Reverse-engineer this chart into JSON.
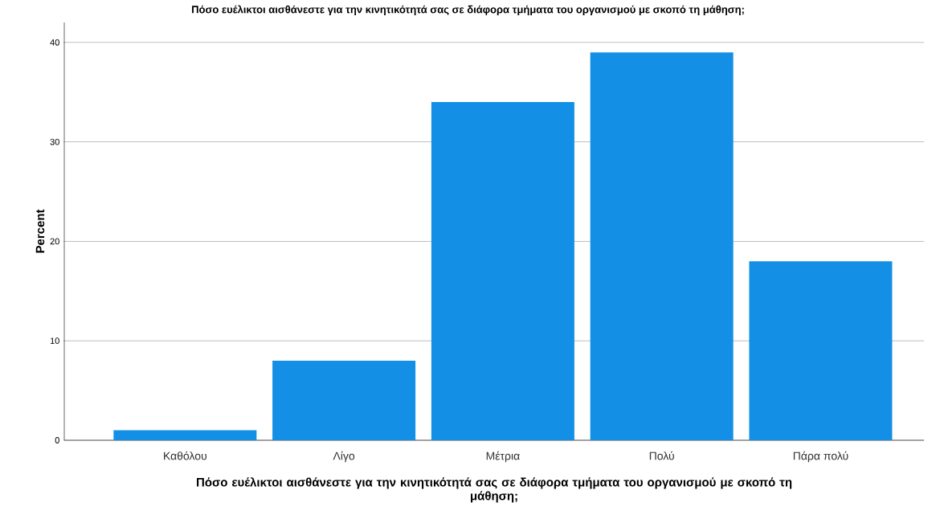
{
  "chart_data": {
    "type": "bar",
    "title": "Πόσο ευέλικτοι αισθάνεστε για την κινητικότητά σας σε διάφορα τμήματα του οργανισμού με σκοπό τη μάθηση;",
    "xlabel": "Πόσο ευέλικτοι αισθάνεστε για την κινητικότητά σας σε διάφορα τμήματα του οργανισμού με σκοπό τη μάθηση;",
    "ylabel": "Percent",
    "categories": [
      "Καθόλου",
      "Λίγο",
      "Μέτρια",
      "Πολύ",
      "Πάρα πολύ"
    ],
    "values": [
      1,
      8,
      34,
      39,
      18
    ],
    "color": "#1390e5",
    "ylim": [
      0,
      42
    ],
    "yticks": [
      0,
      10,
      20,
      30,
      40
    ],
    "grid": "y"
  }
}
